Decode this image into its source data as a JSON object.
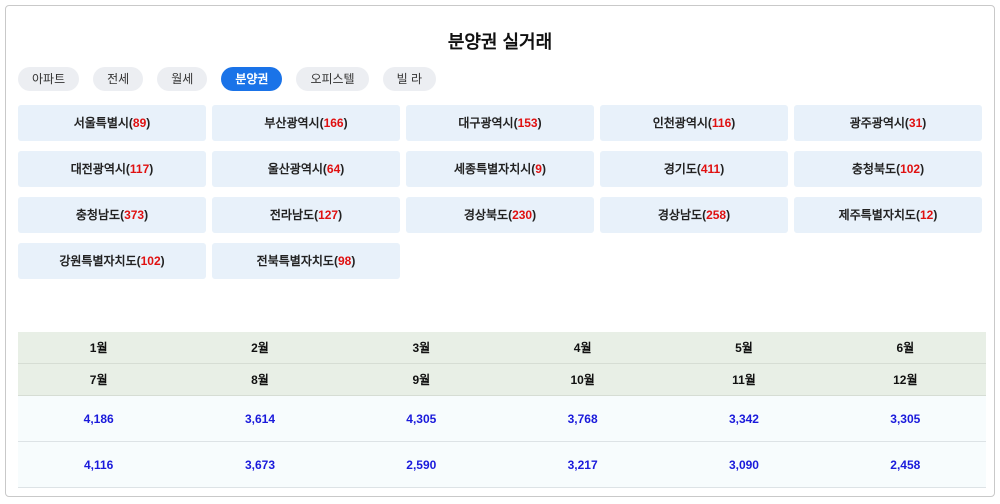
{
  "header": {
    "title": "분양권 실거래"
  },
  "tabs": [
    {
      "label": "아파트",
      "active": false
    },
    {
      "label": "전세",
      "active": false
    },
    {
      "label": "월세",
      "active": false
    },
    {
      "label": "분양권",
      "active": true
    },
    {
      "label": "오피스텔",
      "active": false
    },
    {
      "label": "빌 라",
      "active": false
    }
  ],
  "count_brackets": [
    "(",
    ")"
  ],
  "regions": [
    {
      "name": "서울특별시",
      "count": 89
    },
    {
      "name": "부산광역시",
      "count": 166
    },
    {
      "name": "대구광역시",
      "count": 153
    },
    {
      "name": "인천광역시",
      "count": 116
    },
    {
      "name": "광주광역시",
      "count": 31
    },
    {
      "name": "대전광역시",
      "count": 117
    },
    {
      "name": "울산광역시",
      "count": 64
    },
    {
      "name": "세종특별자치시",
      "count": 9
    },
    {
      "name": "경기도",
      "count": 411
    },
    {
      "name": "충청북도",
      "count": 102
    },
    {
      "name": "충청남도",
      "count": 373
    },
    {
      "name": "전라남도",
      "count": 127
    },
    {
      "name": "경상북도",
      "count": 230
    },
    {
      "name": "경상남도",
      "count": 258
    },
    {
      "name": "제주특별자치도",
      "count": 12
    },
    {
      "name": "강원특별자치도",
      "count": 102
    },
    {
      "name": "전북특별자치도",
      "count": 98
    }
  ],
  "table": {
    "header_rows": [
      [
        "1월",
        "2월",
        "3월",
        "4월",
        "5월",
        "6월"
      ],
      [
        "7월",
        "8월",
        "9월",
        "10월",
        "11월",
        "12월"
      ]
    ],
    "rows": [
      [
        "4,186",
        "3,614",
        "4,305",
        "3,768",
        "3,342",
        "3,305"
      ],
      [
        "4,116",
        "3,673",
        "2,590",
        "3,217",
        "3,090",
        "2,458"
      ]
    ]
  }
}
